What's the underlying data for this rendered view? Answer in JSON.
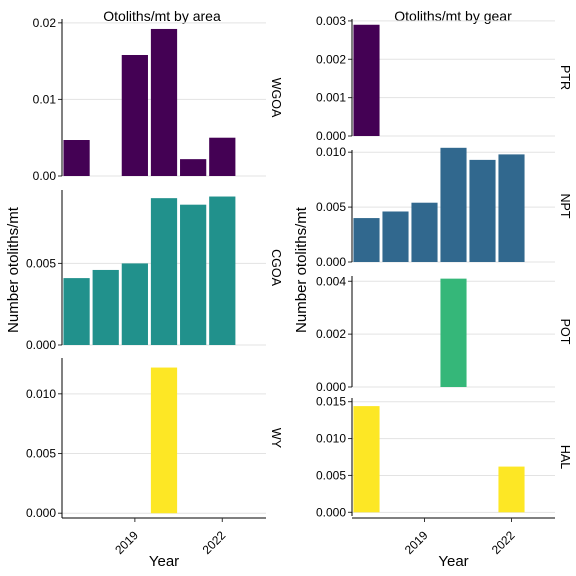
{
  "chart_data": [
    {
      "type": "bar",
      "title": "Otoliths/mt by area",
      "xlabel": "Year",
      "ylabel": "Number otoliths/mt",
      "x_tick_labels": [
        "2019",
        "2022"
      ],
      "years": [
        2017,
        2018,
        2019,
        2020,
        2021,
        2022,
        2023
      ],
      "grid": true,
      "facets": [
        {
          "label": "WGOA",
          "color": "#440154",
          "ylim": [
            0,
            0.0205
          ],
          "y_ticks": [
            0,
            0.01,
            0.02
          ],
          "y_tick_labels": [
            "0.00",
            "0.01",
            "0.02"
          ],
          "values": [
            {
              "x": 2017,
              "y": 0.0047
            },
            {
              "x": 2019,
              "y": 0.0158
            },
            {
              "x": 2020,
              "y": 0.0192
            },
            {
              "x": 2021,
              "y": 0.0022
            },
            {
              "x": 2022,
              "y": 0.005
            }
          ]
        },
        {
          "label": "CGOA",
          "color": "#21918c",
          "ylim": [
            0,
            0.0095
          ],
          "y_ticks": [
            0,
            0.005
          ],
          "y_tick_labels": [
            "0.000",
            "0.005"
          ],
          "values": [
            {
              "x": 2017,
              "y": 0.0041
            },
            {
              "x": 2018,
              "y": 0.0046
            },
            {
              "x": 2019,
              "y": 0.005
            },
            {
              "x": 2020,
              "y": 0.009
            },
            {
              "x": 2021,
              "y": 0.0086
            },
            {
              "x": 2022,
              "y": 0.0091
            }
          ]
        },
        {
          "label": "WY",
          "color": "#fde725",
          "ylim": [
            -0.0004,
            0.013
          ],
          "y_ticks": [
            0,
            0.005,
            0.01
          ],
          "y_tick_labels": [
            "0.000",
            "0.005",
            "0.010"
          ],
          "values": [
            {
              "x": 2020,
              "y": 0.0122
            }
          ]
        }
      ]
    },
    {
      "type": "bar",
      "title": "Otoliths/mt by gear",
      "xlabel": "Year",
      "ylabel": "Number otoliths/mt",
      "x_tick_labels": [
        "2019",
        "2022"
      ],
      "years": [
        2017,
        2018,
        2019,
        2020,
        2021,
        2022,
        2023
      ],
      "grid": true,
      "facets": [
        {
          "label": "PTR",
          "color": "#440154",
          "ylim": [
            0,
            0.00305
          ],
          "y_ticks": [
            0,
            0.001,
            0.002,
            0.003
          ],
          "y_tick_labels": [
            "0.000",
            "0.001",
            "0.002",
            "0.003"
          ],
          "values": [
            {
              "x": 2017,
              "y": 0.0029
            }
          ]
        },
        {
          "label": "NPT",
          "color": "#31688e",
          "ylim": [
            0,
            0.0102
          ],
          "y_ticks": [
            0,
            0.005,
            0.01
          ],
          "y_tick_labels": [
            "0.000",
            "0.005",
            "0.010"
          ],
          "values": [
            {
              "x": 2017,
              "y": 0.004
            },
            {
              "x": 2018,
              "y": 0.0046
            },
            {
              "x": 2019,
              "y": 0.0054
            },
            {
              "x": 2020,
              "y": 0.0104
            },
            {
              "x": 2021,
              "y": 0.0093
            },
            {
              "x": 2022,
              "y": 0.0098
            }
          ]
        },
        {
          "label": "POT",
          "color": "#35b779",
          "ylim": [
            0,
            0.0042
          ],
          "y_ticks": [
            0,
            0.002,
            0.004
          ],
          "y_tick_labels": [
            "0.000",
            "0.002",
            "0.004"
          ],
          "values": [
            {
              "x": 2020,
              "y": 0.0041
            }
          ]
        },
        {
          "label": "HAL",
          "color": "#fde725",
          "ylim": [
            -0.0005,
            0.0155
          ],
          "y_ticks": [
            0,
            0.005,
            0.01,
            0.015
          ],
          "y_tick_labels": [
            "0.000",
            "0.005",
            "0.010",
            "0.015"
          ],
          "values": [
            {
              "x": 2017,
              "y": 0.0144
            },
            {
              "x": 2022,
              "y": 0.0062
            }
          ]
        }
      ]
    }
  ]
}
